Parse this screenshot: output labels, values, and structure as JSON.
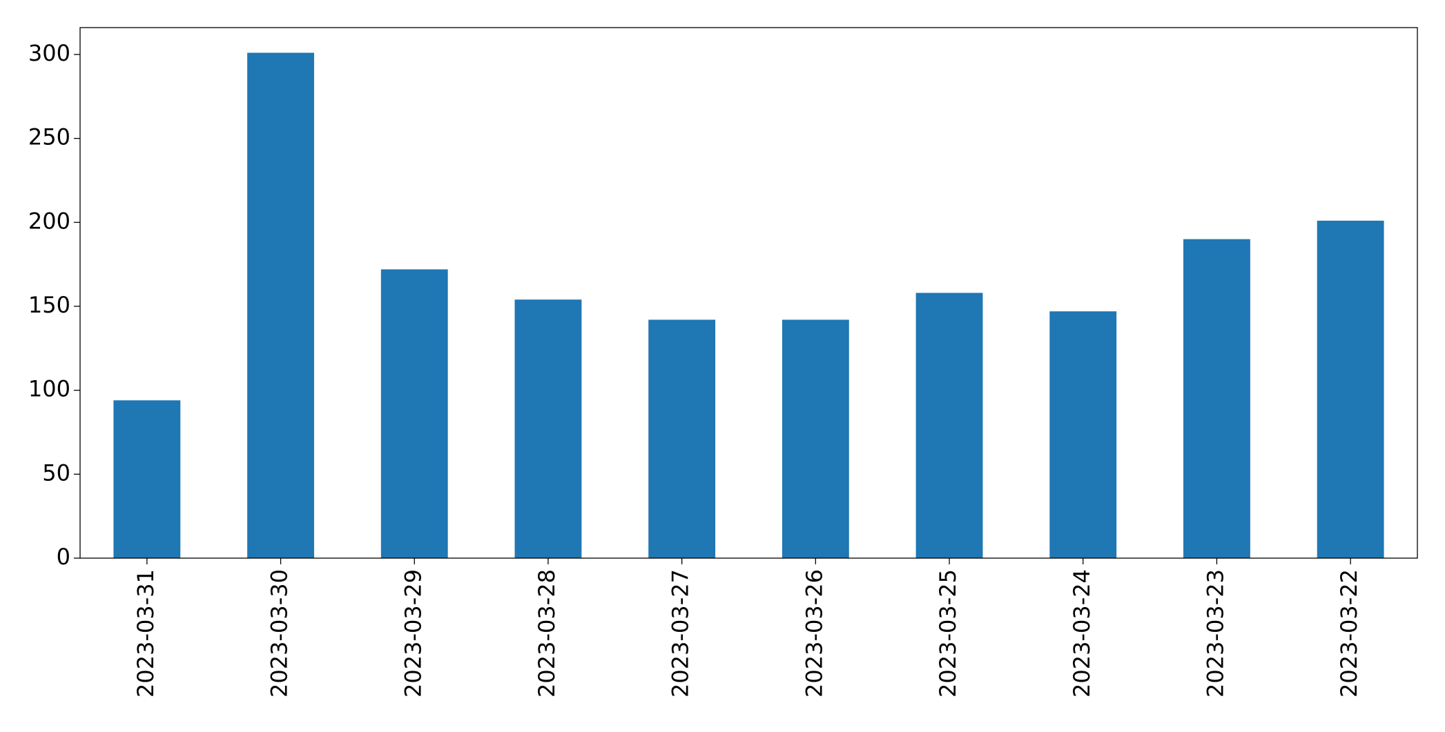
{
  "chart_data": {
    "type": "bar",
    "categories": [
      "2023-03-31",
      "2023-03-30",
      "2023-03-29",
      "2023-03-28",
      "2023-03-27",
      "2023-03-26",
      "2023-03-25",
      "2023-03-24",
      "2023-03-23",
      "2023-03-22"
    ],
    "values": [
      94,
      301,
      172,
      154,
      142,
      142,
      158,
      147,
      190,
      201
    ],
    "color": "#1f77b4",
    "ylim": [
      0,
      316
    ],
    "yticks": [
      0,
      50,
      100,
      150,
      200,
      250,
      300
    ],
    "grid": false
  }
}
